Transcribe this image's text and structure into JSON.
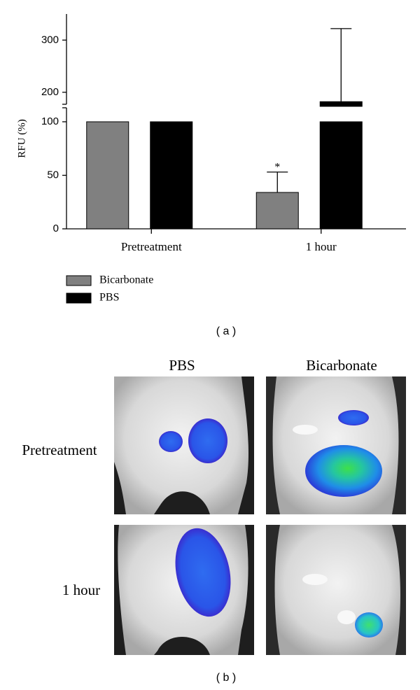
{
  "chart_data": {
    "type": "bar",
    "y_label": "RFU (%)",
    "categories": [
      "Pretreatment",
      "1 hour"
    ],
    "series": [
      {
        "name": "Bicarbonate",
        "color": "#808080",
        "values": [
          100,
          34
        ],
        "errors": [
          null,
          19
        ]
      },
      {
        "name": "PBS",
        "color": "#000000",
        "values": [
          100,
          182
        ],
        "errors": [
          null,
          140
        ]
      }
    ],
    "ylim": [
      0,
      350
    ],
    "y_break": [
      100,
      173
    ],
    "yticks": [
      0,
      50,
      100,
      200,
      300
    ],
    "annotations": [
      {
        "text": "*",
        "series": 0,
        "category": 1
      }
    ],
    "caption": "( a )"
  },
  "panel_b": {
    "columns": [
      "PBS",
      "Bicarbonate"
    ],
    "rows": [
      "Pretreatment",
      "1 hour"
    ],
    "caption": "( b )"
  }
}
